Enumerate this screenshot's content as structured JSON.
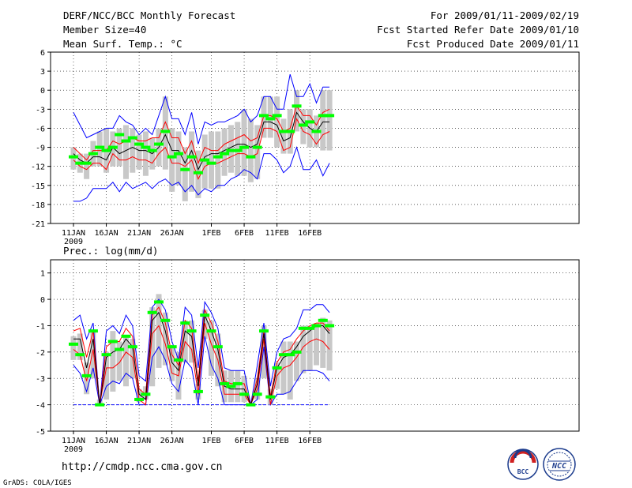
{
  "header": {
    "left": [
      "DERF/NCC/BCC Monthly Forecast",
      "Member Size=40",
      "Mean Surf. Temp.: °C"
    ],
    "right": [
      "For 2009/01/11-2009/02/19",
      "Fcst Started Refer Date 2009/01/10",
      "Fcst Produced Date 2009/01/11"
    ]
  },
  "footer": {
    "url": "http://cmdp.ncc.cma.gov.cn",
    "grads": "GrADS: COLA/IGES",
    "logo_bcc": "BCC",
    "logo_ncc": "NCC"
  },
  "colors": {
    "box": "#c8c8c8",
    "mean": "#00ff00",
    "median": "#000000",
    "band": "#ff0000",
    "extreme": "#0000ff",
    "grid": "#000000"
  },
  "chart_data": [
    {
      "type": "box",
      "title": "Mean Surf. Temp.: °C",
      "x_tick_labels": [
        "11JAN",
        "16JAN",
        "21JAN",
        "26JAN",
        "1FEB",
        "6FEB",
        "11FEB",
        "16FEB"
      ],
      "x_tick_days": [
        1,
        6,
        11,
        16,
        22,
        27,
        32,
        37
      ],
      "x_sublabel": "2009",
      "ylim": [
        -21,
        6
      ],
      "y_ticks": [
        6,
        3,
        0,
        -3,
        -6,
        -9,
        -12,
        -15,
        -18,
        -21
      ],
      "days": [
        1,
        2,
        3,
        4,
        5,
        6,
        7,
        8,
        9,
        10,
        11,
        12,
        13,
        14,
        15,
        16,
        17,
        18,
        19,
        20,
        21,
        22,
        23,
        24,
        25,
        26,
        27,
        28,
        29,
        30,
        31,
        32,
        33,
        34,
        35,
        36,
        37,
        38,
        39,
        40
      ],
      "series": [
        {
          "name": "max",
          "values": [
            -3.5,
            -5.5,
            -7.5,
            -7,
            -6.5,
            -6,
            -6,
            -4,
            -5,
            -5.5,
            -7,
            -6,
            -7,
            -4,
            -1,
            -4.5,
            -4.5,
            -7,
            -3.5,
            -8.5,
            -5,
            -5.5,
            -5,
            -5,
            -4.5,
            -4,
            -3,
            -5,
            -4,
            -1,
            -1,
            -3,
            -3,
            2.5,
            -1,
            -1,
            1,
            -2,
            0.5,
            0.5
          ]
        },
        {
          "name": "q75",
          "values": [
            -9,
            -10,
            -11,
            -9.5,
            -9.5,
            -9.5,
            -8,
            -8.5,
            -8,
            -7.5,
            -8,
            -8,
            -7.5,
            -7.5,
            -5,
            -7.5,
            -7.5,
            -10,
            -8,
            -11.5,
            -9,
            -9.5,
            -9.5,
            -8.5,
            -8,
            -7.5,
            -7,
            -8,
            -7.5,
            -4,
            -4,
            -4.5,
            -6.5,
            -6,
            -2.5,
            -4,
            -4,
            -5.5,
            -3.5,
            -3
          ]
        },
        {
          "name": "median",
          "values": [
            -10,
            -11,
            -11.5,
            -10.5,
            -10.5,
            -11,
            -9,
            -10,
            -9.5,
            -9,
            -9.5,
            -9.5,
            -10,
            -9,
            -7,
            -9.5,
            -9.5,
            -11.5,
            -9.5,
            -12.5,
            -10.5,
            -10,
            -10,
            -9.5,
            -9,
            -8.5,
            -8.5,
            -9,
            -8.5,
            -5,
            -5,
            -5.5,
            -8,
            -7.5,
            -3.5,
            -5,
            -6,
            -6.5,
            -5,
            -5
          ]
        },
        {
          "name": "q25",
          "values": [
            -11,
            -12,
            -12.5,
            -11.5,
            -11.5,
            -12.5,
            -10,
            -11,
            -11,
            -10.5,
            -11,
            -11,
            -11.5,
            -10,
            -9,
            -11.5,
            -11.5,
            -12,
            -11,
            -14,
            -12,
            -11.5,
            -11.5,
            -11,
            -10.5,
            -10,
            -10,
            -10.5,
            -10,
            -6,
            -6,
            -6.5,
            -9.5,
            -9,
            -4.5,
            -6.5,
            -7,
            -8.5,
            -7,
            -6.5
          ]
        },
        {
          "name": "min",
          "values": [
            -17.5,
            -17.5,
            -17,
            -15.5,
            -15.5,
            -15.5,
            -14.5,
            -16,
            -14.5,
            -15.5,
            -15,
            -14.5,
            -15.5,
            -14.5,
            -14,
            -15,
            -14.5,
            -16,
            -15,
            -16.5,
            -15.5,
            -16,
            -15,
            -15,
            -14,
            -13.5,
            -12.5,
            -13,
            -14,
            -10,
            -10,
            -11,
            -13,
            -12,
            -9,
            -12.5,
            -12.5,
            -11,
            -13.5,
            -11.5
          ]
        },
        {
          "name": "mean",
          "values": [
            -10.5,
            -11.5,
            -11.5,
            -10,
            -9,
            -9.5,
            -9,
            -7,
            -8,
            -7.5,
            -8.5,
            -9,
            -9.5,
            -8.5,
            -6.5,
            -10.5,
            -10,
            -12.5,
            -10.5,
            -13,
            -11,
            -11.5,
            -10.5,
            -10,
            -9.5,
            -9.5,
            -9,
            -10.5,
            -9,
            -4,
            -4.5,
            -4,
            -6.5,
            -6.5,
            -2.5,
            -5.5,
            -5,
            -6.5,
            -4,
            -4
          ]
        },
        {
          "name": "box_high",
          "values": [
            -9,
            -10,
            -10,
            -8,
            -6.5,
            -6,
            -6.5,
            -6,
            -5.5,
            -6,
            -7,
            -6.5,
            -7.5,
            -6,
            -1,
            -6,
            -6.5,
            -9,
            -6.5,
            -9.5,
            -7,
            -6.5,
            -6.5,
            -6,
            -5.5,
            -5,
            -3,
            -4.5,
            -5.5,
            -1,
            -1,
            -1,
            -4.5,
            -3,
            0,
            -3,
            -3,
            -4,
            0,
            0
          ]
        },
        {
          "name": "box_low",
          "values": [
            -12.5,
            -13,
            -14,
            -12,
            -12,
            -13,
            -12,
            -12,
            -14,
            -13,
            -12.5,
            -13.5,
            -12.5,
            -12,
            -12.5,
            -16,
            -15,
            -17.5,
            -16,
            -17,
            -15.5,
            -15.5,
            -15.5,
            -13.5,
            -13,
            -13.5,
            -13.5,
            -14.5,
            -14,
            -7.5,
            -7.5,
            -9,
            -10,
            -10,
            -6.5,
            -8.5,
            -9,
            -9,
            -9.5,
            -9.5
          ]
        }
      ]
    },
    {
      "type": "box",
      "title": "Prec.: log(mm/d)",
      "x_tick_labels": [
        "11JAN",
        "16JAN",
        "21JAN",
        "26JAN",
        "1FEB",
        "6FEB",
        "11FEB",
        "16FEB"
      ],
      "x_tick_days": [
        1,
        6,
        11,
        16,
        22,
        27,
        32,
        37
      ],
      "x_sublabel": "2009",
      "ylim": [
        -5,
        1.5
      ],
      "y_ticks": [
        1,
        0,
        -1,
        -2,
        -3,
        -4,
        -5
      ],
      "baseline": -4,
      "days": [
        1,
        2,
        3,
        4,
        5,
        6,
        7,
        8,
        9,
        10,
        11,
        12,
        13,
        14,
        15,
        16,
        17,
        18,
        19,
        20,
        21,
        22,
        23,
        24,
        25,
        26,
        27,
        28,
        29,
        30,
        31,
        32,
        33,
        34,
        35,
        36,
        37,
        38,
        39,
        40
      ],
      "series": [
        {
          "name": "max",
          "values": [
            -0.8,
            -0.6,
            -1.5,
            -0.9,
            -4,
            -1.2,
            -1,
            -1.3,
            -0.6,
            -1,
            -2.9,
            -3.1,
            -0.3,
            0,
            -0.4,
            -1.6,
            -2.3,
            -0.3,
            -0.6,
            -2.6,
            -0.1,
            -0.5,
            -1.1,
            -2.6,
            -2.7,
            -2.7,
            -2.7,
            -4,
            -2.5,
            -0.9,
            -3.3,
            -2,
            -1.5,
            -1.4,
            -1.1,
            -0.4,
            -0.4,
            -0.2,
            -0.2,
            -0.5
          ]
        },
        {
          "name": "q75",
          "values": [
            -1.2,
            -1.1,
            -2.2,
            -1.2,
            -4,
            -1.8,
            -1.6,
            -1.6,
            -1.1,
            -1.4,
            -3.4,
            -3.6,
            -0.6,
            -0.3,
            -0.9,
            -2.1,
            -2.5,
            -0.8,
            -1.1,
            -3.1,
            -0.4,
            -0.9,
            -1.6,
            -3.1,
            -3.2,
            -3.2,
            -3.2,
            -4,
            -3,
            -1.2,
            -3.7,
            -2.4,
            -2,
            -1.9,
            -1.5,
            -1.2,
            -1,
            -0.9,
            -0.9,
            -1.2
          ]
        },
        {
          "name": "median",
          "values": [
            -1.5,
            -1.5,
            -2.6,
            -1.5,
            -4,
            -2.2,
            -2,
            -1.9,
            -1.5,
            -1.8,
            -3.6,
            -3.8,
            -0.8,
            -0.5,
            -1.2,
            -2.4,
            -2.7,
            -1.2,
            -1.4,
            -3.3,
            -0.6,
            -1.2,
            -1.9,
            -3.3,
            -3.4,
            -3.4,
            -3.4,
            -4,
            -3.2,
            -1.3,
            -3.8,
            -2.6,
            -2.2,
            -2.1,
            -1.8,
            -1.4,
            -1.2,
            -1,
            -1,
            -1.3
          ]
        },
        {
          "name": "q25",
          "values": [
            -1.9,
            -2.1,
            -3.1,
            -1.9,
            -4,
            -2.6,
            -2.6,
            -2.4,
            -2,
            -2.2,
            -3.8,
            -4,
            -1.3,
            -1,
            -1.7,
            -2.8,
            -2.9,
            -1.6,
            -1.9,
            -3.6,
            -0.9,
            -1.7,
            -2.3,
            -3.6,
            -3.6,
            -3.6,
            -3.6,
            -4,
            -3.4,
            -1.5,
            -4,
            -2.9,
            -2.6,
            -2.5,
            -2.2,
            -1.8,
            -1.6,
            -1.5,
            -1.6,
            -1.9
          ]
        },
        {
          "name": "min",
          "values": [
            -2.5,
            -2.8,
            -3.5,
            -2.6,
            -4,
            -3.3,
            -3.1,
            -3.2,
            -2.8,
            -3,
            -4,
            -4,
            -2.2,
            -1.8,
            -2.3,
            -3.2,
            -3.5,
            -2.3,
            -2.6,
            -4,
            -1.4,
            -2.5,
            -3,
            -4,
            -4,
            -4,
            -4,
            -4,
            -3.8,
            -1.8,
            -4,
            -3.6,
            -3.6,
            -3.5,
            -3.1,
            -2.7,
            -2.7,
            -2.7,
            -2.8,
            -3.1
          ]
        },
        {
          "name": "mean",
          "values": [
            -1.7,
            -2.1,
            -2.9,
            -1.2,
            -4,
            -2.1,
            -1.6,
            -1.9,
            -1.4,
            -1.8,
            -3.8,
            -3.6,
            -0.5,
            -0.1,
            -0.8,
            -1.8,
            -2.3,
            -0.9,
            -1.2,
            -3.5,
            -0.6,
            -1.2,
            -1.8,
            -3.2,
            -3.3,
            -3.2,
            -3.6,
            -4,
            -3.6,
            -1.2,
            -3.7,
            -2.6,
            -2.1,
            -2.1,
            -2,
            -1.1,
            -1.1,
            -1,
            -0.8,
            -1
          ]
        },
        {
          "name": "box_high",
          "values": [
            -1.4,
            -1.3,
            -2.4,
            -1.2,
            -3.8,
            -2,
            -1.2,
            -1.6,
            -1.4,
            -1.5,
            -3.4,
            -3.3,
            -0.3,
            0.2,
            -0.5,
            -1.8,
            -2,
            -0.8,
            -0.8,
            -3.2,
            -0.4,
            -0.8,
            -1.3,
            -2.7,
            -2.7,
            -2.7,
            -2.9,
            -4,
            -3,
            -1,
            -3.4,
            -2.4,
            -1.6,
            -1.6,
            -1.6,
            -1,
            -1,
            -0.9,
            -0.7,
            -0.8
          ]
        },
        {
          "name": "box_low",
          "values": [
            -2.3,
            -2.3,
            -3.6,
            -3,
            -4,
            -3.8,
            -3.5,
            -3.1,
            -3.3,
            -3,
            -3.9,
            -3.8,
            -3.3,
            -2.6,
            -2.5,
            -3.1,
            -3.8,
            -2.4,
            -2.4,
            -3.8,
            -1.5,
            -2.9,
            -3.3,
            -3.9,
            -3.9,
            -3.9,
            -3.9,
            -4,
            -3.8,
            -3,
            -4,
            -3.4,
            -3.6,
            -3.8,
            -3.1,
            -2.8,
            -2.7,
            -2.5,
            -2.6,
            -2.7
          ]
        }
      ]
    }
  ]
}
